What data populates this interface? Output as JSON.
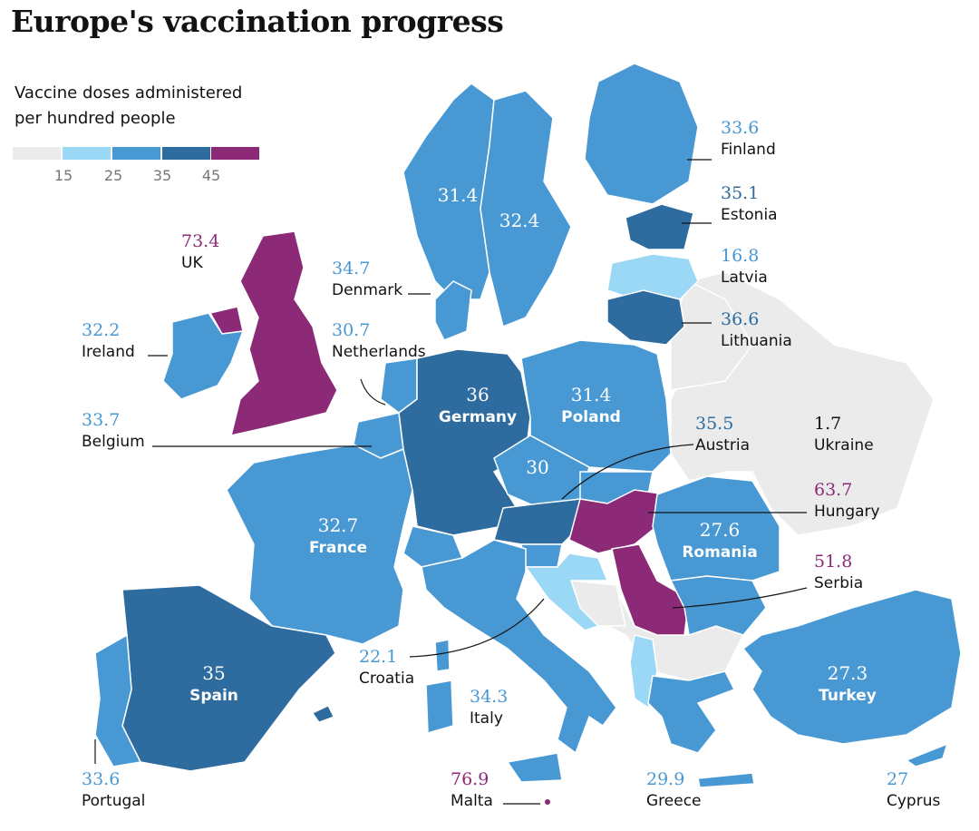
{
  "title": "Europe's vaccination progress",
  "legend": {
    "caption_line1": "Vaccine doses administered",
    "caption_line2": "per hundred people",
    "ticks": [
      "15",
      "25",
      "35",
      "45"
    ],
    "colors": [
      "#ebebeb",
      "#9ad8f5",
      "#4798d3",
      "#2e6b9e",
      "#8c2a77"
    ]
  },
  "colors": {
    "land_nodata": "#ebebeb",
    "label_blue": "#4798d3",
    "label_darkblue": "#2e6b9e",
    "label_purple": "#8c2a77",
    "border": "#ffffff",
    "leader": "#121212"
  },
  "countries": {
    "finland": {
      "name": "Finland",
      "value": "33.6"
    },
    "estonia": {
      "name": "Estonia",
      "value": "35.1"
    },
    "latvia": {
      "name": "Latvia",
      "value": "16.8"
    },
    "lithuania": {
      "name": "Lithuania",
      "value": "36.6"
    },
    "uk": {
      "name": "UK",
      "value": "73.4"
    },
    "denmark": {
      "name": "Denmark",
      "value": "34.7"
    },
    "netherlands": {
      "name": "Netherlands",
      "value": "30.7"
    },
    "ireland": {
      "name": "Ireland",
      "value": "32.2"
    },
    "belgium": {
      "name": "Belgium",
      "value": "33.7"
    },
    "austria": {
      "name": "Austria",
      "value": "35.5"
    },
    "ukraine": {
      "name": "Ukraine",
      "value": "1.7"
    },
    "hungary": {
      "name": "Hungary",
      "value": "63.7"
    },
    "serbia": {
      "name": "Serbia",
      "value": "51.8"
    },
    "croatia": {
      "name": "Croatia",
      "value": "22.1"
    },
    "italy": {
      "name": "Italy",
      "value": "34.3"
    },
    "portugal": {
      "name": "Portugal",
      "value": "33.6"
    },
    "malta": {
      "name": "Malta",
      "value": "76.9"
    },
    "greece": {
      "name": "Greece",
      "value": "29.9"
    },
    "cyprus": {
      "name": "Cyprus",
      "value": "27"
    },
    "norway": {
      "value": "31.4"
    },
    "sweden": {
      "value": "32.4"
    },
    "germany": {
      "name": "Germany",
      "value": "36"
    },
    "poland": {
      "name": "Poland",
      "value": "31.4"
    },
    "czechia": {
      "value": "30"
    },
    "france": {
      "name": "France",
      "value": "32.7"
    },
    "romania": {
      "name": "Romania",
      "value": "27.6"
    },
    "spain": {
      "name": "Spain",
      "value": "35"
    },
    "turkey": {
      "name": "Turkey",
      "value": "27.3"
    }
  }
}
